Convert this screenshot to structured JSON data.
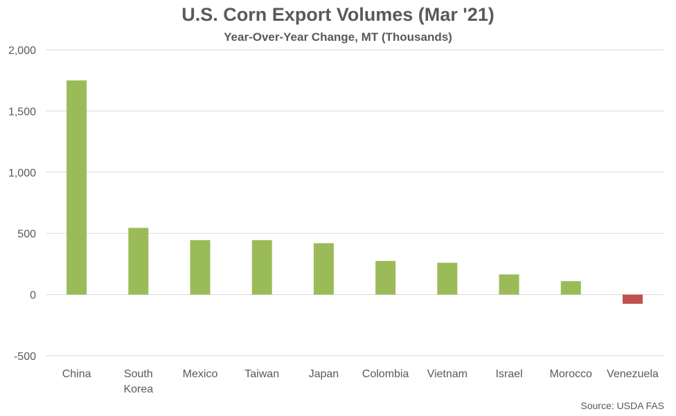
{
  "chart_data": {
    "type": "bar",
    "title": "U.S. Corn Export Volumes (Mar '21)",
    "subtitle": "Year-Over-Year Change, MT (Thousands)",
    "source": "Source: USDA FAS",
    "categories": [
      "China",
      "South Korea",
      "Mexico",
      "Taiwan",
      "Japan",
      "Colombia",
      "Vietnam",
      "Israel",
      "Morocco",
      "Venezuela"
    ],
    "category_lines": [
      [
        "China"
      ],
      [
        "South",
        "Korea"
      ],
      [
        "Mexico"
      ],
      [
        "Taiwan"
      ],
      [
        "Japan"
      ],
      [
        "Colombia"
      ],
      [
        "Vietnam"
      ],
      [
        "Israel"
      ],
      [
        "Morocco"
      ],
      [
        "Venezuela"
      ]
    ],
    "values": [
      1750,
      545,
      445,
      445,
      420,
      275,
      260,
      165,
      110,
      -75
    ],
    "ylim": [
      -500,
      2000
    ],
    "yticks": [
      -500,
      0,
      500,
      1000,
      1500,
      2000
    ],
    "ytick_labels": [
      "-500",
      "0",
      "500",
      "1,000",
      "1,500",
      "2,000"
    ],
    "grid": true,
    "colors": {
      "positive": "#9BBB59",
      "negative": "#C0504D",
      "grid": "#D9D9D9",
      "text": "#595959"
    }
  }
}
